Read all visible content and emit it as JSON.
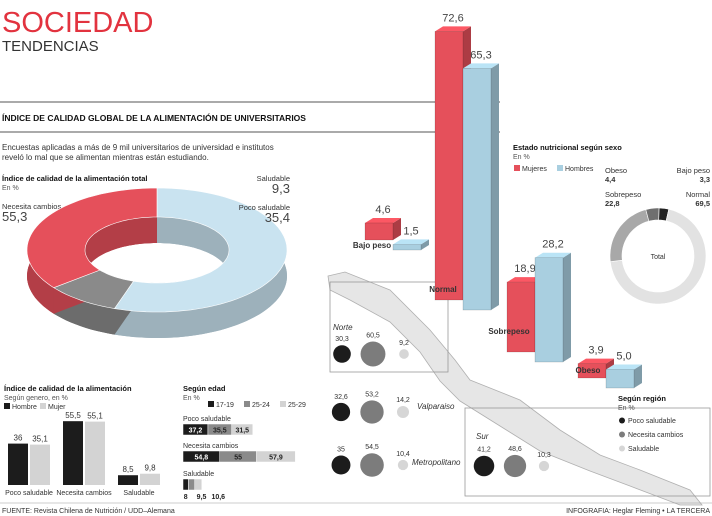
{
  "header": {
    "title": "SOCIEDAD",
    "subtitle": "TENDENCIAS"
  },
  "section_title": "ÍNDICE DE CALIDAD GLOBAL DE LA ALIMENTACIÓN DE UNIVERSITARIOS",
  "intro": [
    "Encuestas aplicadas a más de 9 mil universitarios de universidad e institutos",
    "reveló lo mal que se alimentan mientras están estudiando."
  ],
  "chart_data": [
    {
      "type": "donut",
      "title": "Índice de calidad de la alimentación total",
      "subtitle": "En %",
      "categories": [
        "Necesita cambios",
        "Saludable",
        "Poco saludable"
      ],
      "values": [
        55.3,
        9.3,
        35.4
      ],
      "value_labels": [
        "55,3",
        "9,3",
        "35,4"
      ],
      "colors": [
        "#c9e3f0",
        "#8a8a8a",
        "#e5505b"
      ]
    },
    {
      "type": "bar",
      "title": "Índice de calidad de la alimentación",
      "subtitle": "Según genero, en %",
      "categories": [
        "Poco saludable",
        "Necesita cambios",
        "Saludable"
      ],
      "series": [
        {
          "name": "Hombre",
          "color": "#1c1c1c",
          "values": [
            36,
            55.5,
            8.5
          ],
          "value_labels": [
            "36",
            "55,5",
            "8,5"
          ]
        },
        {
          "name": "Mujer",
          "color": "#d3d3d3",
          "values": [
            35.1,
            55.1,
            9.8
          ],
          "value_labels": [
            "35,1",
            "55,1",
            "9,8"
          ]
        }
      ]
    },
    {
      "type": "hbar",
      "title": "Según edad",
      "subtitle": "En %",
      "categories": [
        "Poco saludable",
        "Necesita cambios",
        "Saludable"
      ],
      "series": [
        {
          "name": "17-19",
          "color": "#1c1c1c",
          "values": [
            37.2,
            54.8,
            8
          ],
          "value_labels": [
            "37,2",
            "54,8",
            "8"
          ]
        },
        {
          "name": "25-24",
          "color": "#8a8a8a",
          "values": [
            35.5,
            55,
            9.5
          ],
          "value_labels": [
            "35,5",
            "55",
            "9,5"
          ]
        },
        {
          "name": "25-29",
          "color": "#d3d3d3",
          "values": [
            31.5,
            57.9,
            10.6
          ],
          "value_labels": [
            "31,5",
            "57,9",
            "10,6"
          ]
        }
      ]
    },
    {
      "type": "bar3d",
      "title": "Estado nutricional según sexo",
      "subtitle": "En %",
      "categories": [
        "Bajo peso",
        "Normal",
        "Sobrepeso",
        "Obeso"
      ],
      "series": [
        {
          "name": "Mujeres",
          "color": "#e5505b",
          "values": [
            4.6,
            72.6,
            18.9,
            3.9
          ],
          "value_labels": [
            "4,6",
            "72,6",
            "18,9",
            "3,9"
          ]
        },
        {
          "name": "Hombres",
          "color": "#a9cfe0",
          "values": [
            1.5,
            65.3,
            28.2,
            5.0
          ],
          "value_labels": [
            "1,5",
            "65,3",
            "28,2",
            "5,0"
          ]
        }
      ]
    },
    {
      "type": "ring",
      "center_label": "Total",
      "categories": [
        "Bajo peso",
        "Normal",
        "Sobrepeso",
        "Obeso"
      ],
      "values": [
        3.3,
        69.5,
        22.8,
        4.4
      ],
      "value_labels": [
        "3,3",
        "69,5",
        "22,8",
        "4,4"
      ],
      "colors": [
        "#222222",
        "#e2e2e2",
        "#a8a8a8",
        "#6f6f6f"
      ]
    },
    {
      "type": "bubble-map",
      "title": "Según región",
      "subtitle": "En %",
      "categories": [
        "Norte",
        "Valparaiso",
        "Metropolitano",
        "Sur"
      ],
      "series": [
        {
          "name": "Poco saludable",
          "color": "#1c1c1c",
          "values": [
            30.3,
            32.6,
            35,
            41.2
          ],
          "value_labels": [
            "30,3",
            "32,6",
            "35",
            "41,2"
          ]
        },
        {
          "name": "Necesita cambios",
          "color": "#7c7c7c",
          "values": [
            60.5,
            53.2,
            54.5,
            48.6
          ],
          "value_labels": [
            "60,5",
            "53,2",
            "54,5",
            "48,6"
          ]
        },
        {
          "name": "Saludable",
          "color": "#d6d6d6",
          "values": [
            9.2,
            14.2,
            10.4,
            10.3
          ],
          "value_labels": [
            "9,2",
            "14,2",
            "10,4",
            "10,3"
          ]
        }
      ]
    }
  ],
  "footer": {
    "source": "FUENTE: Revista Chilena de Nutrición / UDD–Alemana",
    "credit": "INFOGRAFIA: Heglar Fleming • LA TERCERA"
  }
}
